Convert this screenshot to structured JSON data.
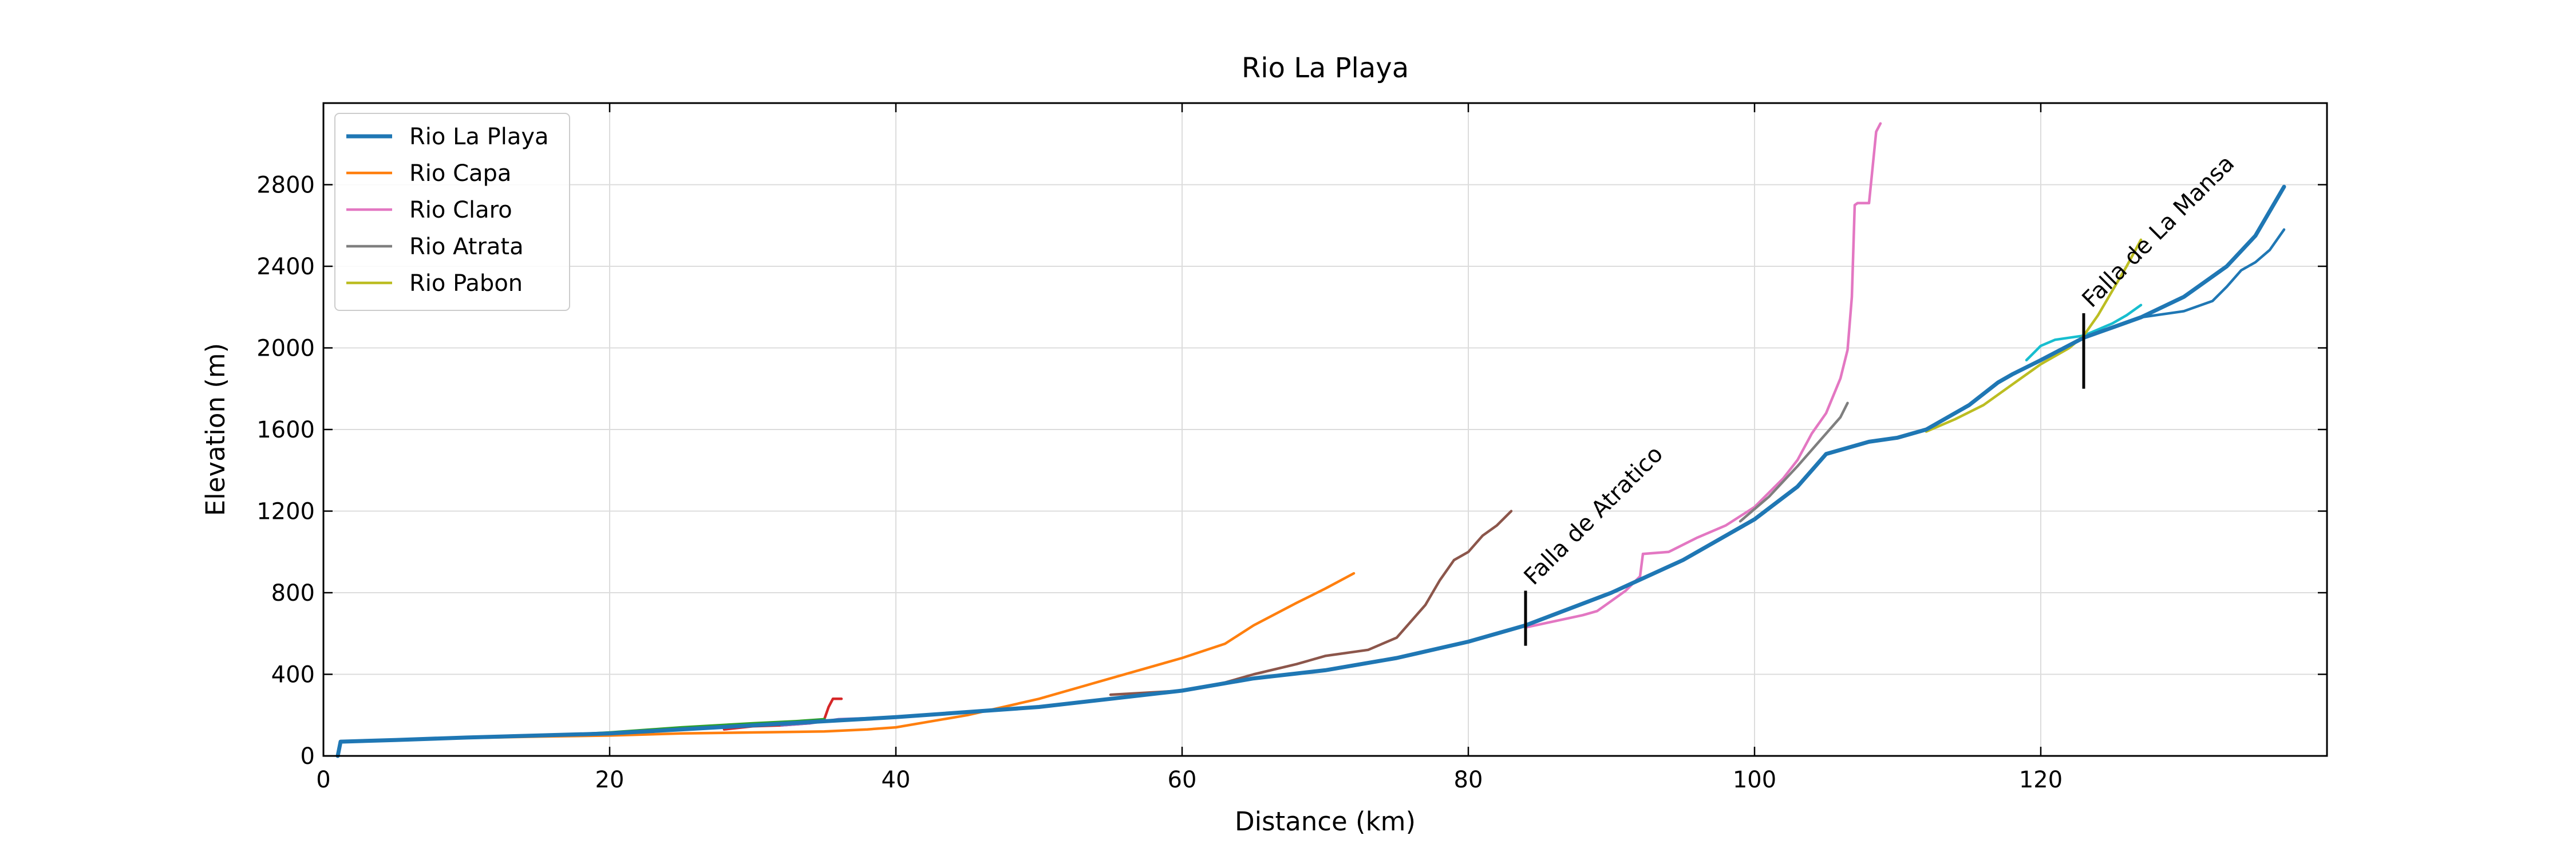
{
  "chart_data": {
    "type": "line",
    "title": "Rio La Playa",
    "xlabel": "Distance (km)",
    "ylabel": "Elevation (m)",
    "xlim": [
      0,
      140
    ],
    "ylim": [
      0,
      3200
    ],
    "xticks": [
      0,
      20,
      40,
      60,
      80,
      100,
      120
    ],
    "yticks": [
      0,
      400,
      800,
      1200,
      1600,
      2000,
      2400,
      2800
    ],
    "grid": true,
    "legend_position": "top-left",
    "series": [
      {
        "name": "Rio La Playa",
        "color": "#1f77b4",
        "legend": true,
        "width": 7,
        "x": [
          1,
          1.2,
          5,
          10,
          20,
          30,
          40,
          50,
          55,
          60,
          65,
          70,
          75,
          80,
          84,
          90,
          95,
          98,
          100,
          103,
          105,
          108,
          110,
          112,
          115,
          117,
          118,
          120,
          123,
          125,
          127,
          130,
          133,
          135,
          137
        ],
        "y": [
          0,
          70,
          78,
          90,
          110,
          150,
          190,
          240,
          280,
          320,
          380,
          420,
          480,
          560,
          640,
          800,
          960,
          1080,
          1160,
          1320,
          1480,
          1540,
          1560,
          1600,
          1720,
          1830,
          1870,
          1940,
          2050,
          2100,
          2150,
          2250,
          2400,
          2550,
          2790
        ]
      },
      {
        "name": "Rio Capa",
        "color": "#ff7f0e",
        "legend": true,
        "width": 4.5,
        "x": [
          8,
          15,
          20,
          25,
          30,
          35,
          38,
          40,
          45,
          50,
          55,
          60,
          63,
          65,
          68,
          70,
          72
        ],
        "y": [
          85,
          95,
          100,
          110,
          115,
          120,
          130,
          140,
          200,
          280,
          380,
          480,
          550,
          640,
          750,
          820,
          895
        ]
      },
      {
        "name": "Rio Claro",
        "color": "#e377c2",
        "legend": true,
        "width": 4.5,
        "x": [
          84,
          86,
          88,
          89,
          90,
          91,
          92,
          92.2,
          94,
          96,
          98,
          100,
          102,
          103,
          104,
          105,
          106,
          106.5,
          106.8,
          107,
          107.2,
          108,
          108.5,
          108.8
        ],
        "y": [
          630,
          660,
          690,
          710,
          760,
          810,
          880,
          990,
          1000,
          1070,
          1130,
          1220,
          1360,
          1450,
          1580,
          1680,
          1850,
          1990,
          2250,
          2700,
          2710,
          2710,
          3060,
          3100
        ]
      },
      {
        "name": "Rio Atrata",
        "color": "#7f7f7f",
        "legend": true,
        "width": 4.5,
        "x": [
          99,
          101,
          103,
          104,
          105,
          106,
          106.5
        ],
        "y": [
          1150,
          1270,
          1420,
          1500,
          1580,
          1660,
          1730
        ]
      },
      {
        "name": "Rio Pabon",
        "color": "#bcbd22",
        "legend": true,
        "width": 4.5,
        "x": [
          112,
          114,
          116,
          118,
          120,
          122,
          123,
          124,
          125,
          126,
          127
        ],
        "y": [
          1590,
          1650,
          1720,
          1820,
          1920,
          2000,
          2060,
          2160,
          2280,
          2400,
          2530
        ]
      },
      {
        "name": "",
        "color": "#17becf",
        "legend": false,
        "width": 4.5,
        "x": [
          119,
          120,
          121,
          122,
          123,
          124,
          125,
          126,
          127
        ],
        "y": [
          1940,
          2010,
          2040,
          2050,
          2060,
          2090,
          2120,
          2160,
          2210
        ]
      },
      {
        "name": "",
        "color": "#8c564b",
        "legend": false,
        "width": 4.5,
        "x": [
          55,
          60,
          63,
          65,
          68,
          70,
          73,
          75,
          76,
          77,
          78,
          79,
          80,
          81,
          82,
          83
        ],
        "y": [
          300,
          320,
          360,
          400,
          450,
          490,
          520,
          580,
          660,
          740,
          860,
          960,
          1000,
          1080,
          1130,
          1200
        ]
      },
      {
        "name": "",
        "color": "#d62728",
        "legend": false,
        "width": 4.5,
        "x": [
          28,
          30,
          32,
          34,
          35,
          35.3,
          35.6,
          36.2
        ],
        "y": [
          130,
          145,
          150,
          160,
          180,
          240,
          280,
          280
        ]
      },
      {
        "name": "",
        "color": "#2ca02c",
        "legend": false,
        "width": 4.5,
        "x": [
          16,
          20,
          25,
          30,
          33,
          35
        ],
        "y": [
          100,
          115,
          140,
          160,
          170,
          180
        ]
      },
      {
        "name": "",
        "color": "#9467bd",
        "legend": false,
        "width": 4.5,
        "x": [
          32,
          34,
          36,
          38,
          40
        ],
        "y": [
          150,
          160,
          180,
          185,
          190
        ]
      },
      {
        "name": "",
        "color": "#1f77b4",
        "legend": false,
        "width": 4.5,
        "x": [
          123,
          125,
          127,
          130,
          132,
          133,
          134,
          135,
          136,
          137
        ],
        "y": [
          2050,
          2100,
          2150,
          2180,
          2230,
          2300,
          2380,
          2420,
          2480,
          2580
        ]
      }
    ],
    "annotations": [
      {
        "text": "Falla de Atratico",
        "x": 84,
        "y_range": [
          540,
          810
        ]
      },
      {
        "text": "Falla de La Mansa",
        "x": 123,
        "y_range": [
          1800,
          2170
        ]
      }
    ]
  }
}
